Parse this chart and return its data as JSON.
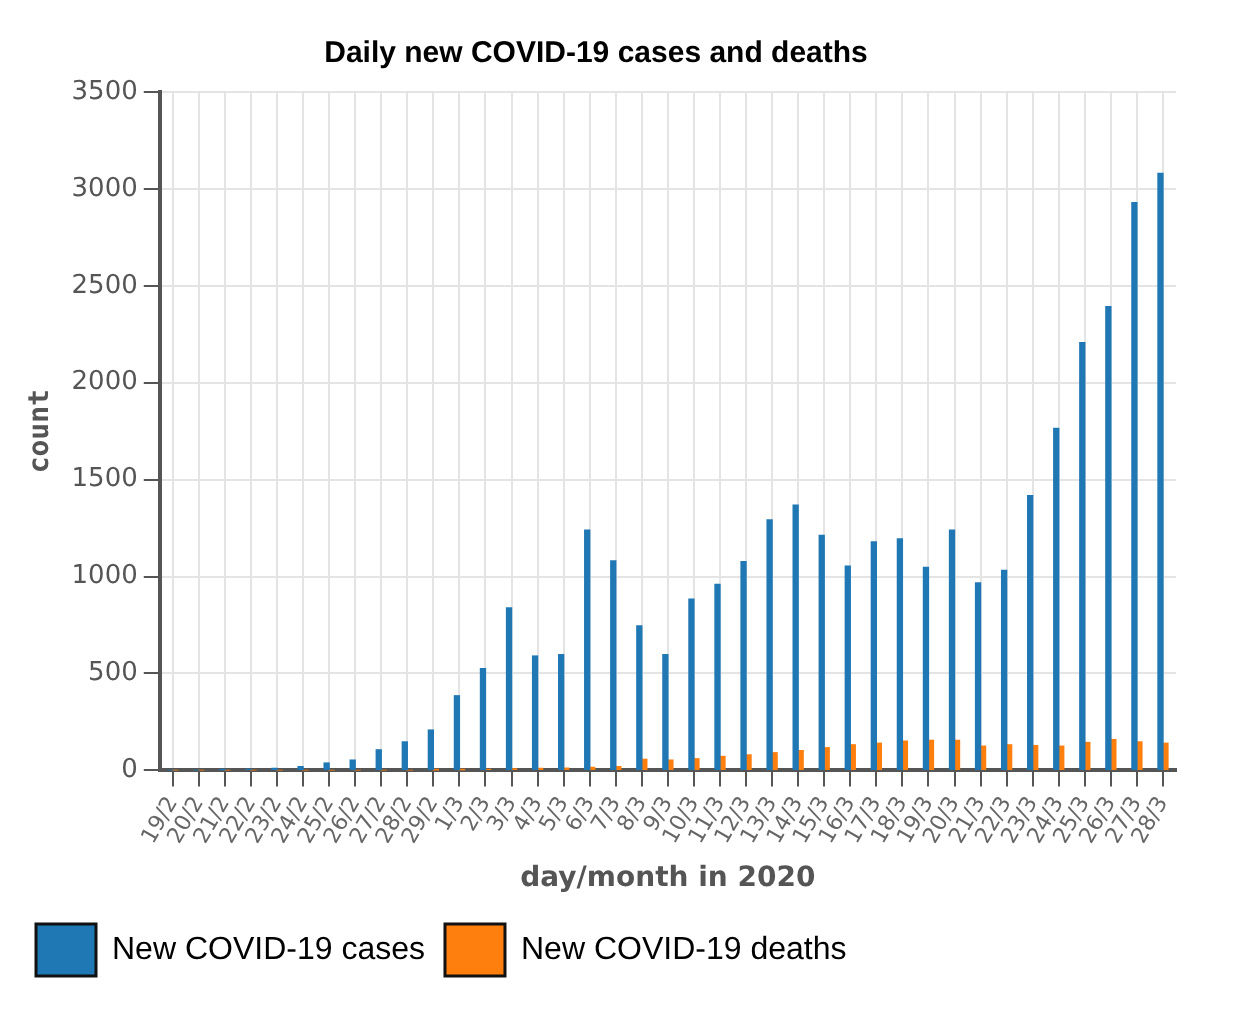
{
  "chart_data": {
    "type": "bar",
    "title": "Daily new COVID-19 cases and deaths",
    "xlabel": "day/month in 2020",
    "ylabel": "count",
    "categories": [
      "19/2",
      "20/2",
      "21/2",
      "22/2",
      "23/2",
      "24/2",
      "25/2",
      "26/2",
      "27/2",
      "28/2",
      "29/2",
      "1/3",
      "2/3",
      "3/3",
      "4/3",
      "5/3",
      "6/3",
      "7/3",
      "8/3",
      "9/3",
      "10/3",
      "11/3",
      "12/3",
      "13/3",
      "14/3",
      "15/3",
      "16/3",
      "17/3",
      "18/3",
      "19/3",
      "20/3",
      "21/3",
      "22/3",
      "23/3",
      "24/3",
      "25/3",
      "26/3",
      "27/3",
      "28/3"
    ],
    "series": [
      {
        "name": "New COVID-19 cases",
        "color": "#1f77b4",
        "values": [
          0,
          0,
          3,
          5,
          10,
          20,
          38,
          53,
          106,
          147,
          208,
          385,
          525,
          839,
          590,
          597,
          1240,
          1081,
          745,
          597,
          884,
          960,
          1077,
          1293,
          1368,
          1213,
          1054,
          1179,
          1194,
          1047,
          1240,
          967,
          1032,
          1417,
          1765,
          2207,
          2392,
          2929,
          3080
        ]
      },
      {
        "name": "New COVID-19 deaths",
        "color": "#ff7f0e",
        "values": [
          0,
          0,
          0,
          0,
          0,
          0,
          0,
          0,
          0,
          0,
          1,
          2,
          5,
          8,
          10,
          12,
          15,
          20,
          57,
          53,
          60,
          72,
          80,
          91,
          102,
          117,
          132,
          140,
          151,
          155,
          155,
          125,
          132,
          128,
          125,
          144,
          159,
          147,
          140
        ]
      }
    ],
    "ylim": [
      0,
      3500
    ],
    "yticks": [
      0,
      500,
      1000,
      1500,
      2000,
      2500,
      3000,
      3500
    ],
    "grid": true,
    "legend": "bottom left"
  }
}
